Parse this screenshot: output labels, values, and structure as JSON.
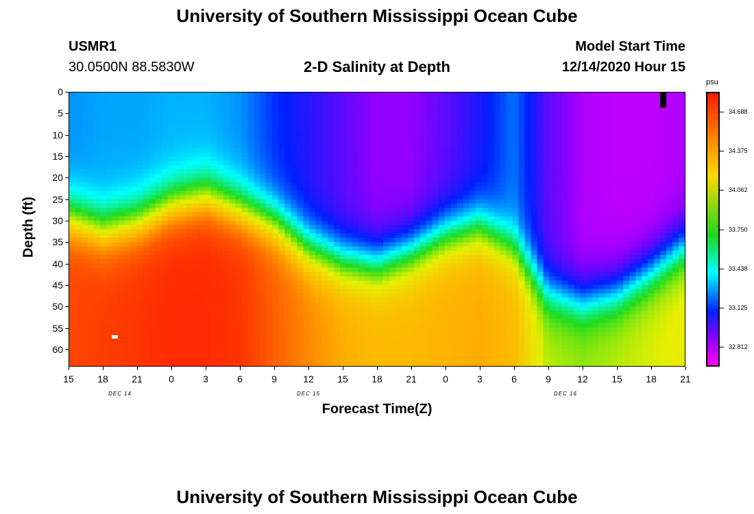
{
  "header": {
    "title_top": "University of Southern Mississippi Ocean Cube",
    "title_bottom": "University of Southern Mississippi Ocean Cube",
    "station": "USMR1",
    "coords": "30.0500N 88.5830W",
    "plot_title": "2-D Salinity at Depth",
    "model_label": "Model Start Time",
    "model_value": "12/14/2020 Hour 15"
  },
  "chart_data": {
    "type": "heatmap",
    "title": "2-D Salinity at Depth",
    "xlabel": "Forecast Time(Z)",
    "ylabel": "Depth (ft)",
    "units": "psu",
    "y_ticks": [
      "0",
      "5",
      "10",
      "15",
      "20",
      "25",
      "30",
      "35",
      "40",
      "45",
      "50",
      "55",
      "60"
    ],
    "x_ticks": [
      "15",
      "18",
      "21",
      "0",
      "3",
      "6",
      "9",
      "12",
      "15",
      "18",
      "21",
      "0",
      "3",
      "6",
      "9",
      "12",
      "15",
      "18",
      "21"
    ],
    "day_labels": [
      "DEC 14",
      "DEC 15",
      "DEC 16"
    ],
    "ylim": [
      0,
      64
    ],
    "colorbar": {
      "labels": [
        "34.688",
        "34.375",
        "34.062",
        "33.750",
        "33.438",
        "33.125",
        "32.812"
      ],
      "range": [
        32.7,
        34.85
      ]
    },
    "forecast_hours": [
      0,
      3,
      6,
      9,
      12,
      15,
      18,
      21,
      24,
      27,
      30,
      33,
      36,
      39,
      42,
      45,
      48,
      51,
      54
    ],
    "surface_salinity": [
      33.35,
      33.38,
      33.38,
      33.4,
      33.4,
      33.35,
      33.2,
      33.1,
      33.0,
      32.9,
      32.9,
      33.0,
      33.12,
      33.3,
      33.0,
      32.85,
      32.82,
      32.82,
      32.85
    ],
    "halocline_depth_ft": [
      29,
      32,
      30,
      26,
      24,
      27,
      30,
      36,
      39,
      40,
      37,
      33,
      31,
      36,
      47,
      49,
      47,
      42,
      36
    ],
    "bottom_salinity": [
      34.7,
      34.72,
      34.75,
      34.78,
      34.78,
      34.75,
      34.62,
      34.5,
      34.4,
      34.35,
      34.35,
      34.38,
      34.4,
      34.35,
      34.05,
      34.0,
      34.05,
      34.1,
      34.15
    ]
  }
}
